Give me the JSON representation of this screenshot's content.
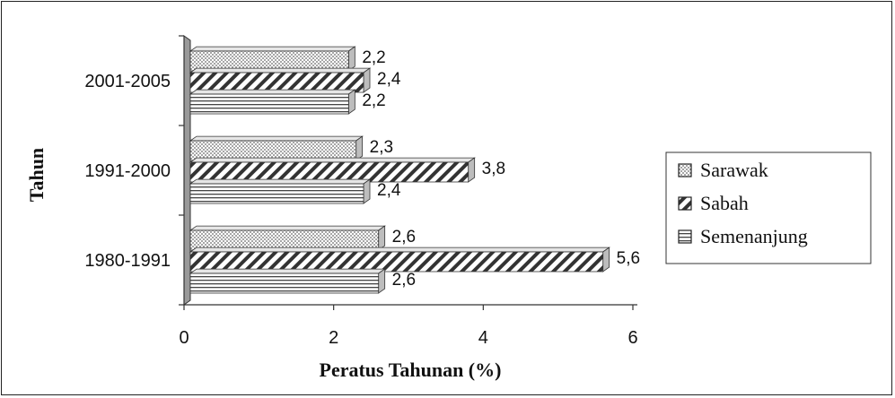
{
  "chart_data": {
    "type": "bar",
    "orientation": "horizontal",
    "style": "3d",
    "categories": [
      "1980-1991",
      "1991-2000",
      "2001-2005"
    ],
    "series": [
      {
        "name": "Sarawak",
        "values": [
          2.6,
          2.3,
          2.2
        ],
        "labels": [
          "2,6",
          "2,3",
          "2,2"
        ],
        "pattern": "dots"
      },
      {
        "name": "Sabah",
        "values": [
          5.6,
          3.8,
          2.4
        ],
        "labels": [
          "5,6",
          "3,8",
          "2,4"
        ],
        "pattern": "diagonal"
      },
      {
        "name": "Semenanjung",
        "values": [
          2.6,
          2.4,
          2.2
        ],
        "labels": [
          "2,6",
          "2,4",
          "2,2"
        ],
        "pattern": "horizontal"
      }
    ],
    "xlabel": "Peratus Tahunan (%)",
    "ylabel": "Tahun",
    "xlim": [
      0,
      6
    ],
    "xticks": [
      0,
      2,
      4,
      6
    ],
    "xtick_labels": [
      "0",
      "2",
      "4",
      "6"
    ],
    "grid": false,
    "legend_position": "right",
    "colors": {
      "bar_fill": "#ffffff",
      "bar_stroke": "#333333",
      "wall": "#9a9a9a",
      "text": "#111111"
    }
  }
}
